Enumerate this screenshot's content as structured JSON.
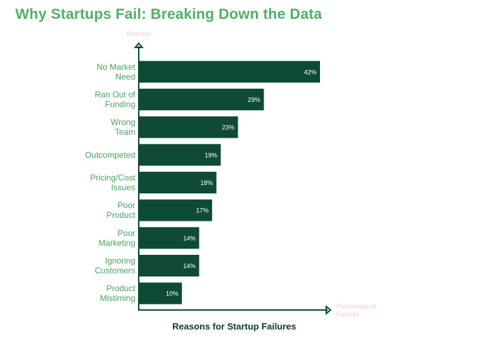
{
  "chart_data": {
    "type": "bar",
    "orientation": "horizontal",
    "title": "Why Startups Fail: Breaking Down the Data",
    "caption": "Reasons for Startup Failures",
    "ylabel": "Reasons",
    "xlabel": "Percentage of Failures",
    "categories": [
      "No Market Need",
      "Ran Out of Funding",
      "Wrong Team",
      "Outcompeted",
      "Pricing/Cost Issues",
      "Poor Product",
      "Poor Marketing",
      "Ignoring Customers",
      "Product Mistiming"
    ],
    "values": [
      42,
      29,
      23,
      19,
      18,
      17,
      14,
      14,
      10
    ],
    "data_labels": [
      "42%",
      "29%",
      "23%",
      "19%",
      "18%",
      "17%",
      "14%",
      "14%",
      "10%"
    ],
    "xlim": [
      0,
      58
    ],
    "grid": false,
    "legend": "none",
    "colors": {
      "bar": "#0f4a36",
      "category_label": "#45a55e",
      "title": "#4fb068",
      "axis": "#0f4a36",
      "axis_label": "#f4c9c9",
      "bar_label": "#ffffff",
      "caption": "#123a2a"
    }
  }
}
